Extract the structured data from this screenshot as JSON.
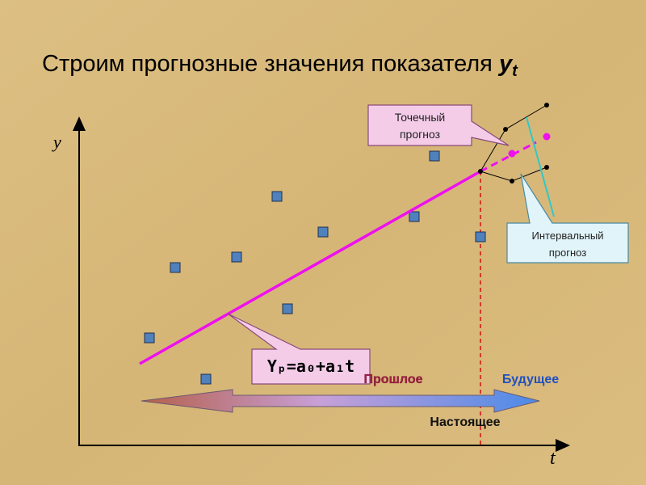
{
  "title": {
    "text": "Строим прогнозные значения показателя",
    "symbol": "y",
    "subscript": "t"
  },
  "axes": {
    "y_label": "y",
    "x_label": "t"
  },
  "callouts": {
    "point_forecast": [
      "Точечный",
      "прогноз"
    ],
    "interval_forecast": [
      "Интервальный",
      "прогноз"
    ],
    "formula": "Yₚ=a₀+a₁t"
  },
  "timeline": {
    "past": "Прошлое",
    "future": "Будущее",
    "present": "Настоящее"
  }
}
